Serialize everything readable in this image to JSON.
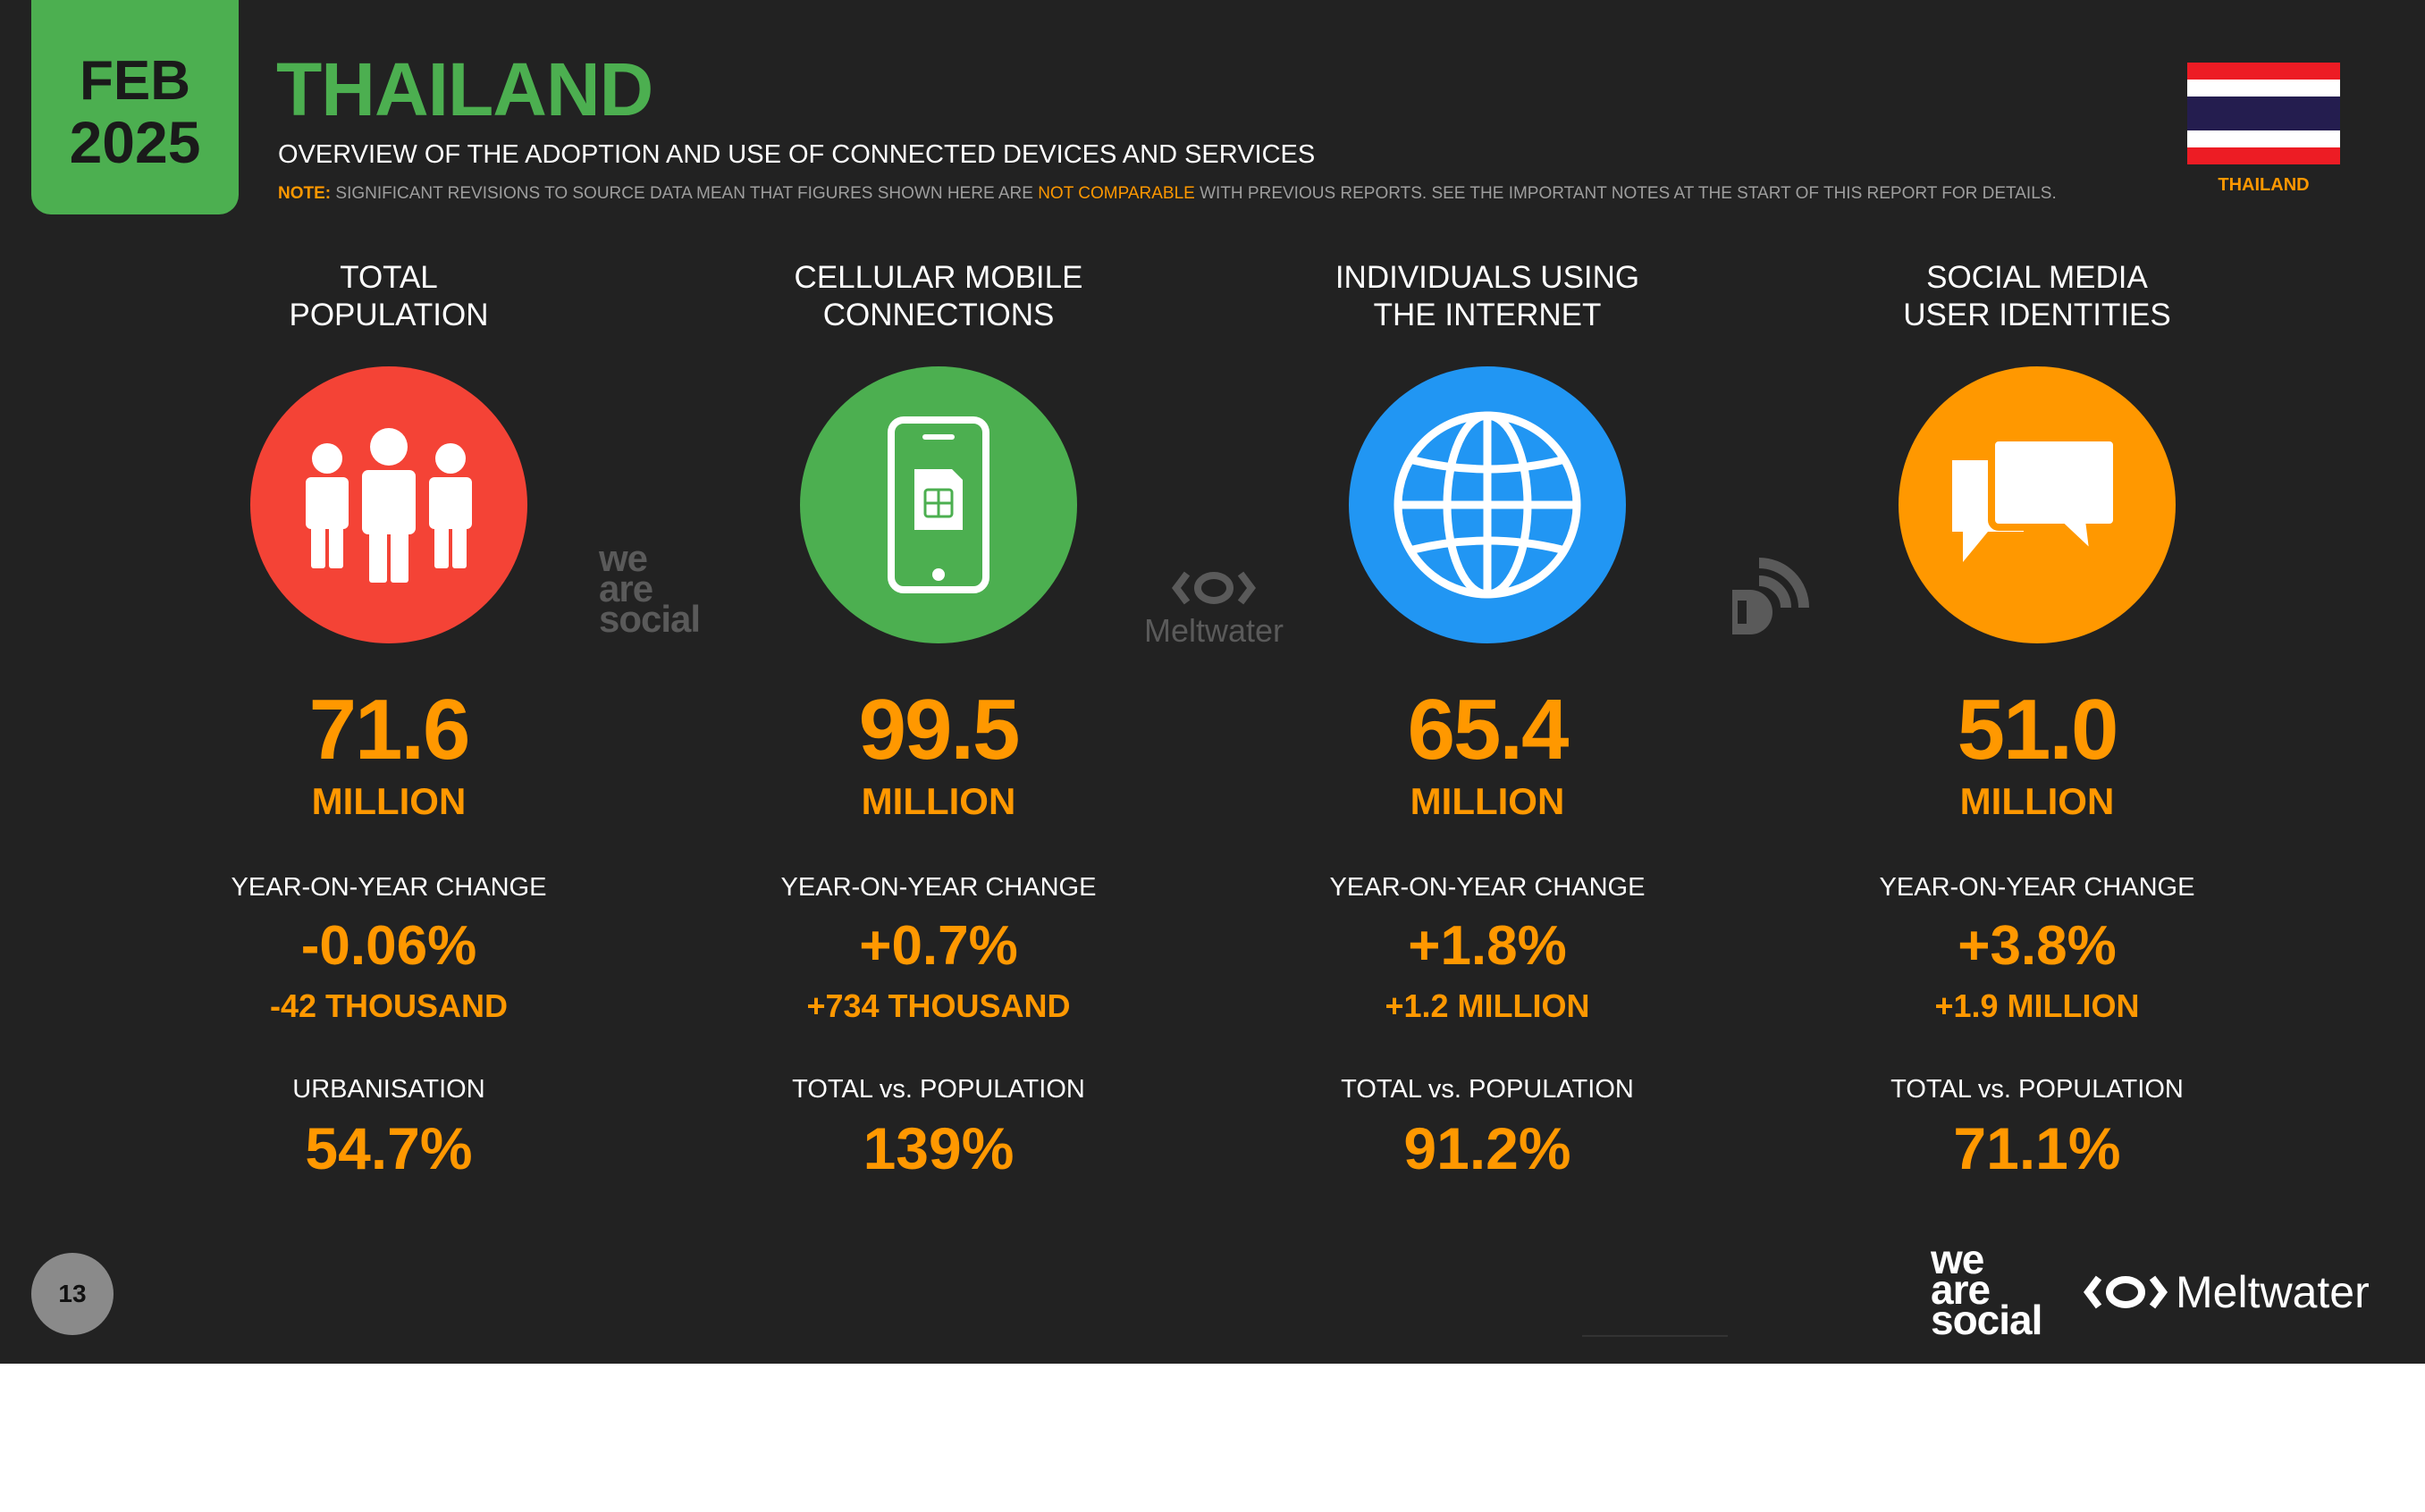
{
  "date": {
    "month": "FEB",
    "year": "2025"
  },
  "header": {
    "title": "THAILAND",
    "subtitle": "OVERVIEW OF THE ADOPTION AND USE OF CONNECTED DEVICES AND SERVICES",
    "note_label": "NOTE:",
    "note_part1": "SIGNIFICANT REVISIONS TO SOURCE DATA MEAN THAT FIGURES SHOWN HERE ARE",
    "note_highlight": "NOT COMPARABLE",
    "note_part2": "WITH PREVIOUS REPORTS. SEE THE IMPORTANT NOTES AT THE START OF THIS REPORT FOR DETAILS."
  },
  "flag": {
    "label": "THAILAND",
    "colors": [
      "#ed1c24",
      "#ffffff",
      "#241d4f",
      "#ffffff",
      "#ed1c24"
    ]
  },
  "columns": [
    {
      "header_line1": "TOTAL",
      "header_line2": "POPULATION",
      "icon": "people-icon",
      "color": "#f44336",
      "value": "71.6",
      "unit": "MILLION",
      "yoy_label": "YEAR-ON-YEAR CHANGE",
      "yoy_pct": "-0.06%",
      "yoy_abs": "-42 THOUSAND",
      "foot_label": "URBANISATION",
      "foot_value": "54.7%"
    },
    {
      "header_line1": "CELLULAR MOBILE",
      "header_line2": "CONNECTIONS",
      "icon": "mobile-phone-icon",
      "color": "#4caf50",
      "value": "99.5",
      "unit": "MILLION",
      "yoy_label": "YEAR-ON-YEAR CHANGE",
      "yoy_pct": "+0.7%",
      "yoy_abs": "+734 THOUSAND",
      "foot_label": "TOTAL vs. POPULATION",
      "foot_value": "139%"
    },
    {
      "header_line1": "INDIVIDUALS USING",
      "header_line2": "THE INTERNET",
      "icon": "globe-icon",
      "color": "#2196f3",
      "value": "65.4",
      "unit": "MILLION",
      "yoy_label": "YEAR-ON-YEAR CHANGE",
      "yoy_pct": "+1.8%",
      "yoy_abs": "+1.2 MILLION",
      "foot_label": "TOTAL vs. POPULATION",
      "foot_value": "91.2%"
    },
    {
      "header_line1": "SOCIAL MEDIA",
      "header_line2": "USER IDENTITIES",
      "icon": "chat-bubbles-icon",
      "color": "#ff9800",
      "value": "51.0",
      "unit": "MILLION",
      "yoy_label": "YEAR-ON-YEAR CHANGE",
      "yoy_pct": "+3.8%",
      "yoy_abs": "+1.9 MILLION",
      "foot_label": "TOTAL vs. POPULATION",
      "foot_value": "71.1%"
    }
  ],
  "watermarks": {
    "was_line1": "we",
    "was_line2": "are",
    "was_line3": "social",
    "meltwater": "Meltwater"
  },
  "footer": {
    "page": "13",
    "was_line1": "we",
    "was_line2": "are",
    "was_line3": "social",
    "meltwater": "Meltwater"
  },
  "colors": {
    "background": "#222222",
    "accent": "#ff9800",
    "brand_green": "#4caf50"
  }
}
